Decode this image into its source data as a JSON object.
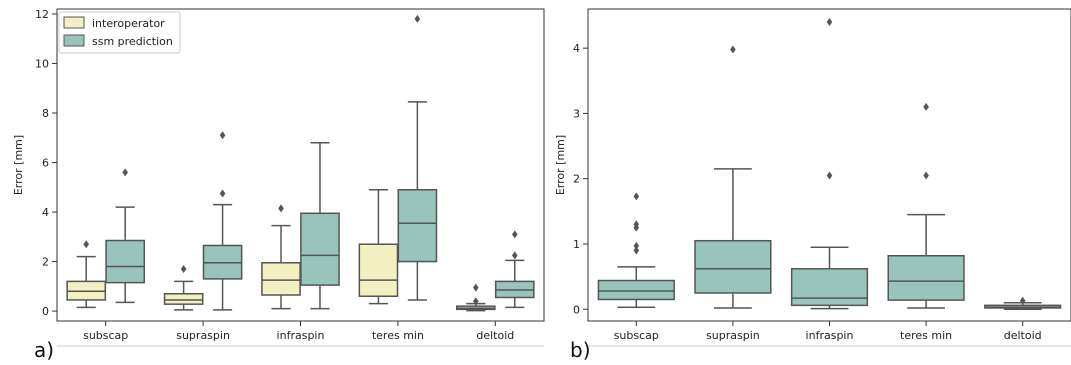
{
  "colors": {
    "interoperator": "#f2f0c0",
    "ssm": "#98c4bb",
    "line": "#555555",
    "outlier": "#555555"
  },
  "panels": {
    "a": "a)",
    "b": "b)"
  },
  "chart_data": [
    {
      "type": "box",
      "ylabel": "Error [mm]",
      "ylim": [
        -0.4,
        12.2
      ],
      "yticks": [
        0,
        2,
        4,
        6,
        8,
        10,
        12
      ],
      "categories": [
        "subscap",
        "supraspin",
        "infraspin",
        "teres min",
        "deltoid"
      ],
      "legend": {
        "position": "top-left",
        "entries": [
          "interoperator",
          "ssm prediction"
        ]
      },
      "series": [
        {
          "name": "interoperator",
          "color_key": "interoperator",
          "boxes": [
            {
              "whislo": 0.15,
              "q1": 0.45,
              "med": 0.8,
              "q3": 1.2,
              "whishi": 2.2,
              "fliers": [
                2.7
              ]
            },
            {
              "whislo": 0.05,
              "q1": 0.28,
              "med": 0.45,
              "q3": 0.7,
              "whishi": 1.2,
              "fliers": [
                1.7
              ]
            },
            {
              "whislo": 0.1,
              "q1": 0.65,
              "med": 1.25,
              "q3": 1.95,
              "whishi": 3.45,
              "fliers": [
                4.15
              ]
            },
            {
              "whislo": 0.3,
              "q1": 0.6,
              "med": 1.25,
              "q3": 2.7,
              "whishi": 4.9,
              "fliers": []
            },
            {
              "whislo": 0.02,
              "q1": 0.07,
              "med": 0.12,
              "q3": 0.2,
              "whishi": 0.3,
              "fliers": [
                0.95,
                0.4
              ]
            }
          ]
        },
        {
          "name": "ssm prediction",
          "color_key": "ssm",
          "boxes": [
            {
              "whislo": 0.35,
              "q1": 1.15,
              "med": 1.8,
              "q3": 2.85,
              "whishi": 4.2,
              "fliers": [
                5.6
              ]
            },
            {
              "whislo": 0.05,
              "q1": 1.3,
              "med": 1.95,
              "q3": 2.65,
              "whishi": 4.3,
              "fliers": [
                4.75,
                7.1
              ]
            },
            {
              "whislo": 0.1,
              "q1": 1.05,
              "med": 2.25,
              "q3": 3.95,
              "whishi": 6.8,
              "fliers": []
            },
            {
              "whislo": 0.45,
              "q1": 2.0,
              "med": 3.55,
              "q3": 4.9,
              "whishi": 8.45,
              "fliers": [
                11.8
              ]
            },
            {
              "whislo": 0.15,
              "q1": 0.55,
              "med": 0.85,
              "q3": 1.2,
              "whishi": 2.05,
              "fliers": [
                2.25,
                3.1
              ]
            }
          ]
        }
      ]
    },
    {
      "type": "box",
      "ylabel": "Error [mm]",
      "ylim": [
        -0.18,
        4.6
      ],
      "yticks": [
        0,
        1,
        2,
        3,
        4
      ],
      "categories": [
        "subscap",
        "supraspin",
        "infraspin",
        "teres min",
        "deltoid"
      ],
      "series": [
        {
          "name": "",
          "color_key": "ssm",
          "boxes": [
            {
              "whislo": 0.03,
              "q1": 0.15,
              "med": 0.28,
              "q3": 0.44,
              "whishi": 0.65,
              "fliers": [
                0.9,
                0.97,
                1.25,
                1.3,
                1.73
              ]
            },
            {
              "whislo": 0.02,
              "q1": 0.25,
              "med": 0.62,
              "q3": 1.05,
              "whishi": 2.15,
              "fliers": [
                3.98
              ]
            },
            {
              "whislo": 0.01,
              "q1": 0.06,
              "med": 0.17,
              "q3": 0.62,
              "whishi": 0.95,
              "fliers": [
                2.05,
                4.4
              ]
            },
            {
              "whislo": 0.02,
              "q1": 0.14,
              "med": 0.43,
              "q3": 0.82,
              "whishi": 1.45,
              "fliers": [
                2.05,
                3.1
              ]
            },
            {
              "whislo": 0.0,
              "q1": 0.02,
              "med": 0.03,
              "q3": 0.06,
              "whishi": 0.1,
              "fliers": [
                0.13
              ]
            }
          ]
        }
      ]
    }
  ]
}
